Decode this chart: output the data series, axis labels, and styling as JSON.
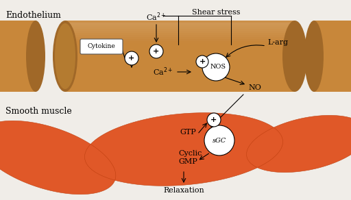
{
  "bg_color": "#f0ede8",
  "tube_color": "#c8873a",
  "tube_dark": "#a06828",
  "tube_light": "#d4983e",
  "sm_color": "#e05828",
  "sm_dark": "#c04010",
  "sm_light": "#f07040",
  "label_endothelium": "Endothelium",
  "label_smooth": "Smooth muscle",
  "label_cytokine": "Cytokine",
  "label_ca_top": "Ca$^{2+}$",
  "label_shear": "Shear stress",
  "label_larg": "L-arg",
  "label_ca_bottom": "Ca$^{2+}$",
  "label_nos": "NOS",
  "label_no": "NO",
  "label_gtp": "GTP",
  "label_sgc": "sGC",
  "label_cyclic": "Cyclic\nGMP",
  "label_relaxation": "Relaxation",
  "plus": "+"
}
